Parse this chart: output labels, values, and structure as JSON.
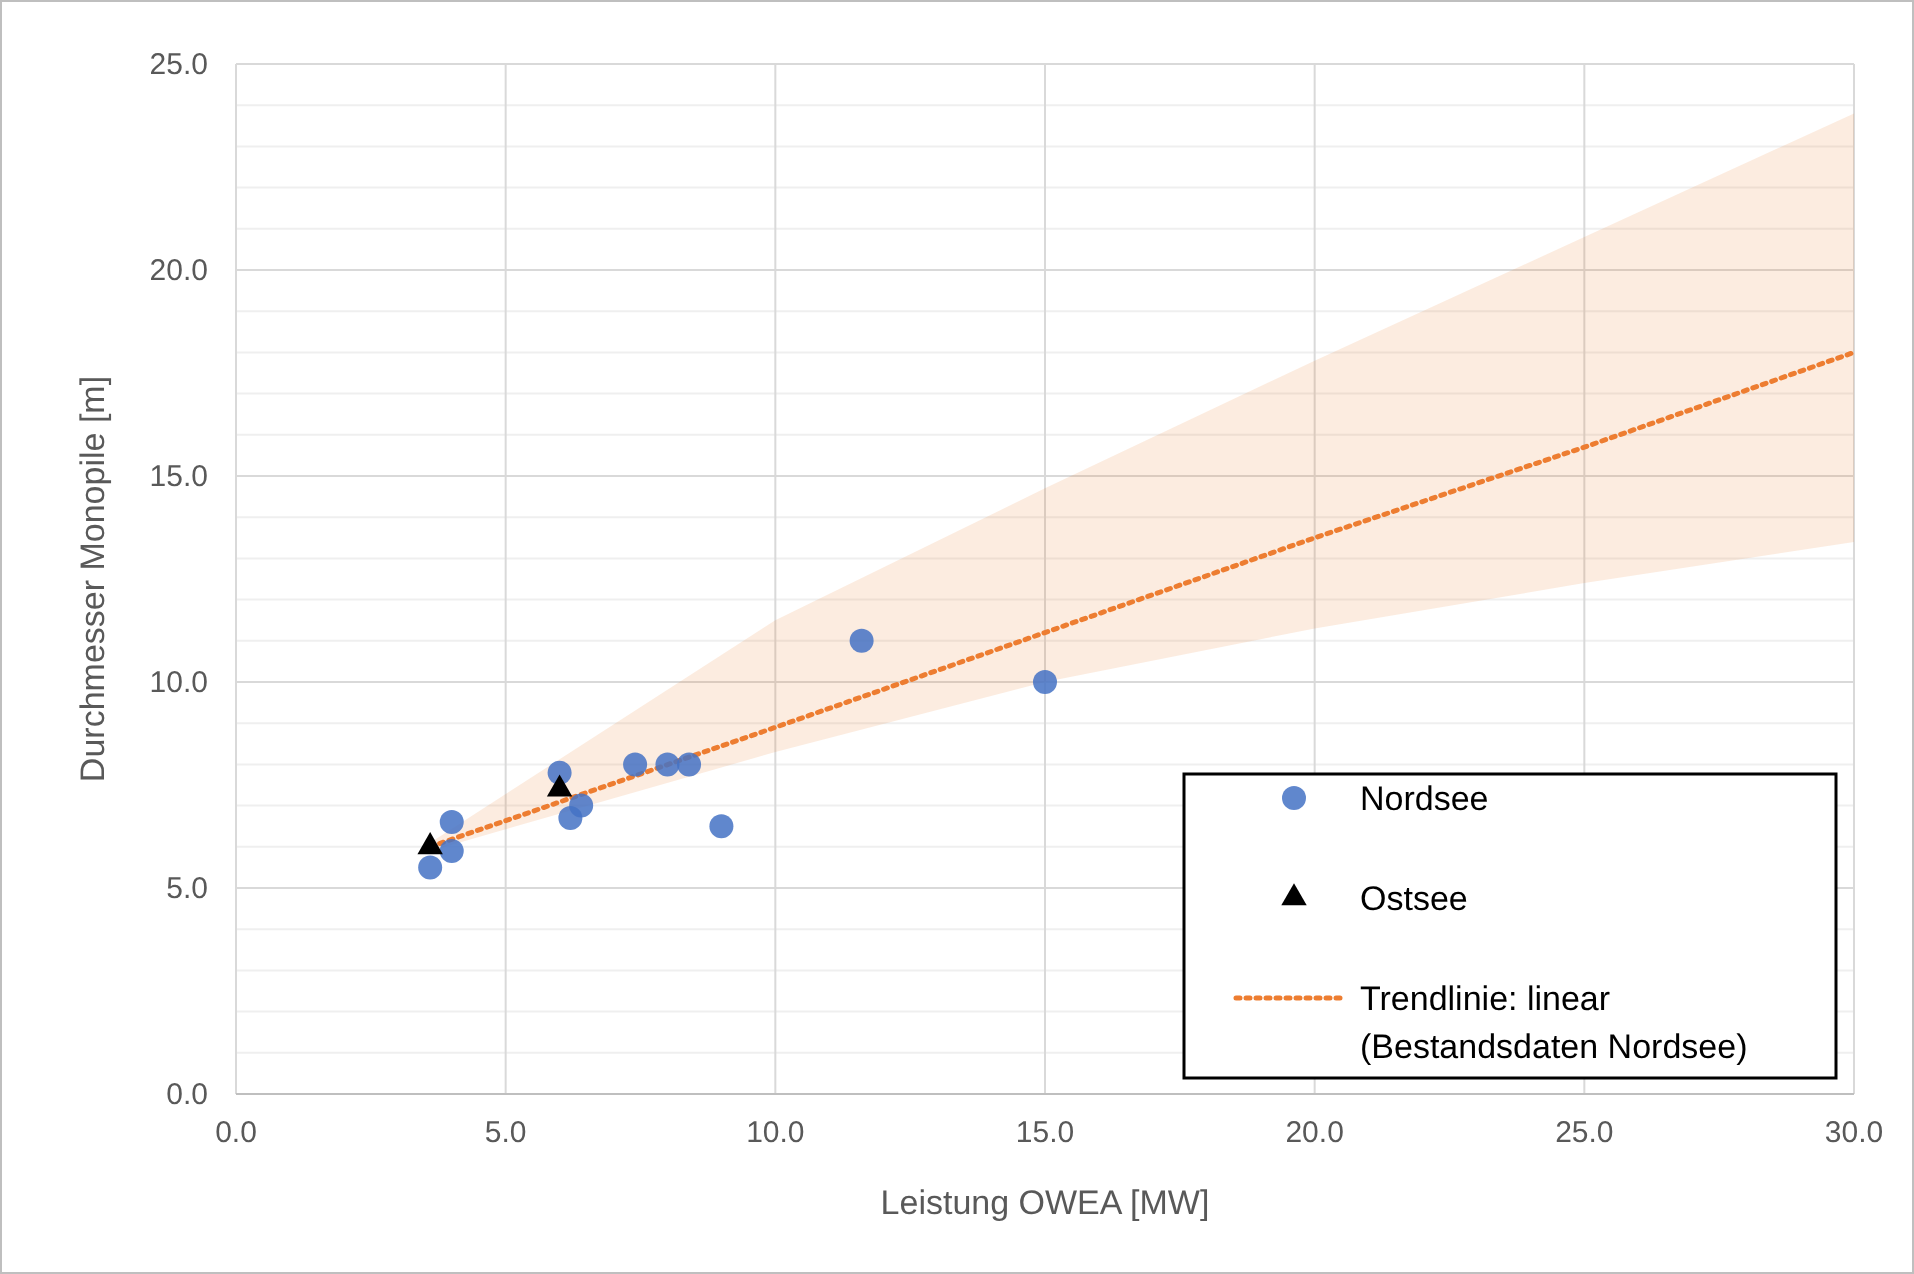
{
  "chart_data": {
    "type": "scatter",
    "xlabel": "Leistung OWEA [MW]",
    "ylabel": "Durchmesser Monopile [m]",
    "xlim": [
      0,
      30
    ],
    "xticks": [
      {
        "value": 0,
        "label": "0.0"
      },
      {
        "value": 5,
        "label": "5.0"
      },
      {
        "value": 10,
        "label": "10.0"
      },
      {
        "value": 15,
        "label": "15.0"
      },
      {
        "value": 20,
        "label": "20.0"
      },
      {
        "value": 25,
        "label": "25.0"
      },
      {
        "value": 30,
        "label": "30.0"
      }
    ],
    "ylim": [
      0,
      25
    ],
    "yticks": [
      {
        "value": 0,
        "label": "0.0"
      },
      {
        "value": 1,
        "label": null
      },
      {
        "value": 2,
        "label": null
      },
      {
        "value": 3,
        "label": null
      },
      {
        "value": 4,
        "label": null
      },
      {
        "value": 5,
        "label": "5.0"
      },
      {
        "value": 6,
        "label": null
      },
      {
        "value": 7,
        "label": null
      },
      {
        "value": 8,
        "label": null
      },
      {
        "value": 9,
        "label": null
      },
      {
        "value": 10,
        "label": "10.0"
      },
      {
        "value": 11,
        "label": null
      },
      {
        "value": 12,
        "label": null
      },
      {
        "value": 13,
        "label": null
      },
      {
        "value": 14,
        "label": null
      },
      {
        "value": 15,
        "label": "15.0"
      },
      {
        "value": 16,
        "label": null
      },
      {
        "value": 17,
        "label": null
      },
      {
        "value": 18,
        "label": null
      },
      {
        "value": 19,
        "label": null
      },
      {
        "value": 20,
        "label": "20.0"
      },
      {
        "value": 21,
        "label": null
      },
      {
        "value": 22,
        "label": null
      },
      {
        "value": 23,
        "label": null
      },
      {
        "value": 24,
        "label": null
      },
      {
        "value": 25,
        "label": "25.0"
      }
    ],
    "grid": true,
    "legend": "bottom right",
    "series": [
      {
        "name": "Nordsee",
        "marker": "circle",
        "color": "#4472c4",
        "x": [
          3.6,
          4.0,
          4.0,
          6.0,
          6.2,
          6.4,
          7.4,
          8.0,
          8.4,
          9.0,
          11.6,
          15.0
        ],
        "values": [
          5.5,
          6.6,
          5.9,
          7.8,
          6.7,
          7.0,
          8.0,
          8.0,
          8.0,
          6.5,
          11.0,
          10.0
        ]
      },
      {
        "name": "Ostsee",
        "marker": "triangle",
        "color": "#000000",
        "x": [
          3.6,
          6.0
        ],
        "values": [
          6.0,
          7.4
        ]
      },
      {
        "name": "Trendlinie: linear (Bestandsdaten Nordsee)",
        "type": "line",
        "marker": "none",
        "line_style": "dotted",
        "color": "#ed7d31",
        "x": [
          3.6,
          10,
          15,
          20,
          25,
          30
        ],
        "values": [
          6.0,
          8.9,
          11.2,
          13.5,
          15.7,
          18.0
        ],
        "lower": [
          5.9,
          8.3,
          10.0,
          11.3,
          12.4,
          13.4
        ],
        "upper": [
          6.1,
          11.5,
          14.7,
          17.8,
          20.8,
          23.8
        ]
      }
    ]
  }
}
